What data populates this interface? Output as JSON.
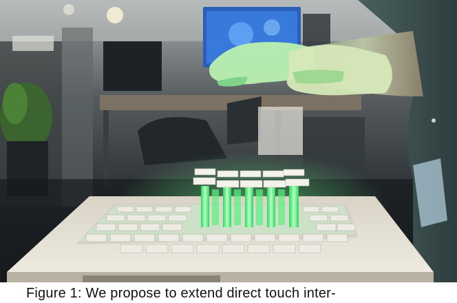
{
  "figure": {
    "caption": "Figure 1: We propose to extend direct touch inter-"
  },
  "photo": {
    "subject": "shape-display",
    "colors": {
      "background_dark": "#1c2127",
      "table_surface": "#e3ded2",
      "pin_glow": "#4cff7a",
      "hand_light": "#b8f0b0",
      "monitor_blue": "#3a7fe0"
    }
  }
}
